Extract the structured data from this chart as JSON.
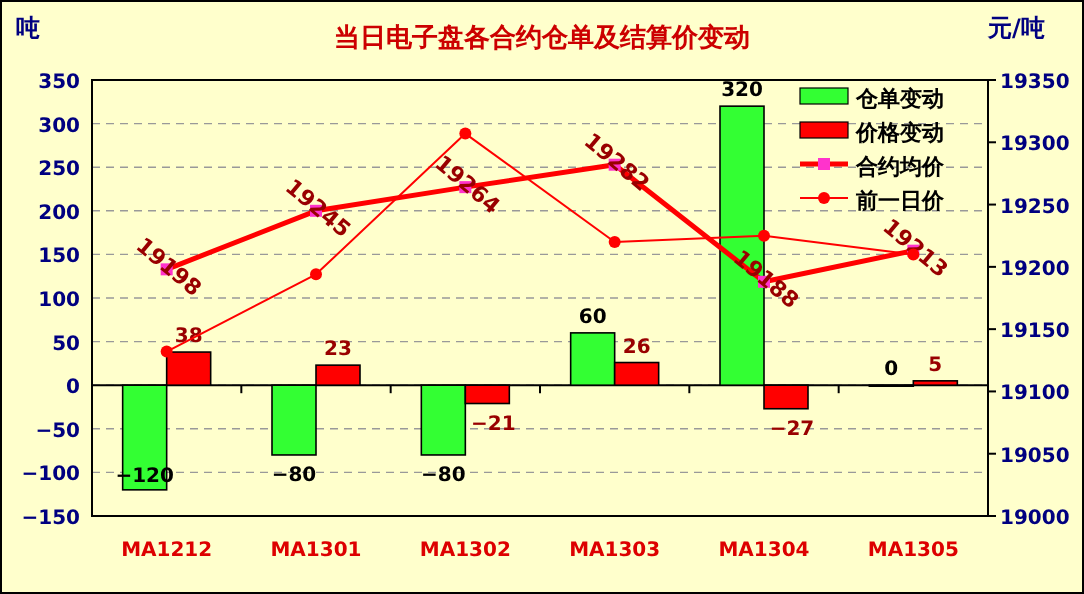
{
  "chart_data": {
    "type": "bar",
    "title": "当日电子盘各合约仓单及结算价变动",
    "ylabel": "吨",
    "y2label": "元/吨",
    "categories": [
      "MA1212",
      "MA1301",
      "MA1302",
      "MA1303",
      "MA1304",
      "MA1305"
    ],
    "series": [
      {
        "name": "仓单变动",
        "color": "#33ff33",
        "values": [
          -120,
          -80,
          -80,
          60,
          320,
          0
        ],
        "value_labels": [
          "−120",
          "−80",
          "−80",
          "60",
          "320",
          "0"
        ]
      },
      {
        "name": "价格变动",
        "color": "#ff0000",
        "values": [
          38,
          23,
          -21,
          26,
          -27,
          5
        ],
        "value_labels": [
          "38",
          "23",
          "−21",
          "26",
          "−27",
          "5"
        ]
      },
      {
        "name": "合约均价",
        "type": "line",
        "axis": "y2",
        "color": "#ff0000",
        "marker": "square",
        "values": [
          19198,
          19245,
          19264,
          19282,
          19188,
          19213
        ],
        "value_labels": [
          "19198",
          "19245",
          "19264",
          "19282",
          "19188",
          "19213"
        ]
      },
      {
        "name": "前一日价",
        "type": "line",
        "axis": "y2",
        "color": "#ff0000",
        "marker": "circle",
        "values": [
          19132,
          19194,
          19307,
          19220,
          19225,
          19210
        ]
      }
    ],
    "ylim": [
      -150,
      350
    ],
    "yticks": [
      {
        "value": -150,
        "label": "−150"
      },
      {
        "value": -100,
        "label": "−100"
      },
      {
        "value": -50,
        "label": "−50"
      },
      0,
      50,
      100,
      150,
      200,
      250,
      300,
      350
    ],
    "y2lim": [
      19000,
      19350
    ],
    "y2ticks": [
      19000,
      19050,
      19100,
      19150,
      19200,
      19250,
      19300,
      19350
    ],
    "grid": "y",
    "legend": "top right"
  }
}
